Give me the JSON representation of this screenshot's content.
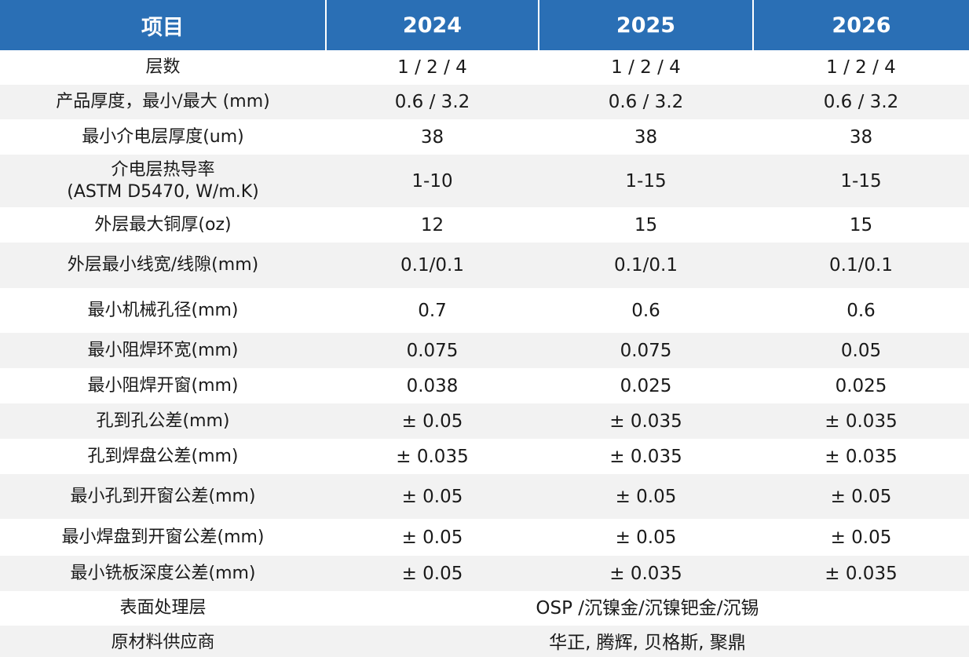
{
  "header": {
    "item": "项目",
    "year1": "2024",
    "year2": "2025",
    "year3": "2026"
  },
  "rows": [
    {
      "label": "层数",
      "v1": "1 / 2 / 4",
      "v2": "1 / 2 / 4",
      "v3": "1 / 2 / 4"
    },
    {
      "label": "产品厚度，最小/最大 (mm)",
      "v1": "0.6 / 3.2",
      "v2": "0.6 / 3.2",
      "v3": "0.6 / 3.2"
    },
    {
      "label": "最小介电层厚度(um)",
      "v1": "38",
      "v2": "38",
      "v3": "38"
    },
    {
      "label": "介电层热导率",
      "label2": "(ASTM D5470, W/m.K)",
      "v1": "1-10",
      "v2": "1-15",
      "v3": "1-15"
    },
    {
      "label": "外层最大铜厚(oz)",
      "v1": "12",
      "v2": "15",
      "v3": "15"
    },
    {
      "label": "外层最小线宽/线隙(mm)",
      "v1": "0.1/0.1",
      "v2": "0.1/0.1",
      "v3": "0.1/0.1"
    },
    {
      "label": "最小机械孔径(mm)",
      "v1": "0.7",
      "v2": "0.6",
      "v3": "0.6"
    },
    {
      "label": "最小阻焊环宽(mm)",
      "v1": "0.075",
      "v2": "0.075",
      "v3": "0.05"
    },
    {
      "label": "最小阻焊开窗(mm)",
      "v1": "0.038",
      "v2": "0.025",
      "v3": "0.025"
    },
    {
      "label": "孔到孔公差(mm)",
      "v1": "± 0.05",
      "v2": "± 0.035",
      "v3": "± 0.035"
    },
    {
      "label": "孔到焊盘公差(mm)",
      "v1": "± 0.035",
      "v2": "± 0.035",
      "v3": "± 0.035"
    },
    {
      "label": "最小孔到开窗公差(mm)",
      "v1": "± 0.05",
      "v2": "± 0.05",
      "v3": "± 0.05"
    },
    {
      "label": "最小焊盘到开窗公差(mm)",
      "v1": "± 0.05",
      "v2": "± 0.05",
      "v3": "± 0.05"
    },
    {
      "label": "最小铣板深度公差(mm)",
      "v1": "± 0.05",
      "v2": "± 0.035",
      "v3": "± 0.035"
    }
  ],
  "merged_rows": [
    {
      "label": "表面处理层",
      "value": "OSP /沉镍金/沉镍钯金/沉锡"
    },
    {
      "label": "原材料供应商",
      "value": "华正, 腾辉, 贝格斯, 聚鼎"
    }
  ],
  "colors": {
    "header_bg": "#2a6fb5",
    "header_text": "#ffffff",
    "row_alt_bg": "#f2f2f2"
  }
}
